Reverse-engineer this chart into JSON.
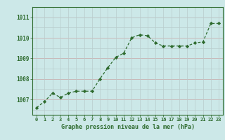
{
  "x": [
    0,
    1,
    2,
    3,
    4,
    5,
    6,
    7,
    8,
    9,
    10,
    11,
    12,
    13,
    14,
    15,
    16,
    17,
    18,
    19,
    20,
    21,
    22,
    23
  ],
  "y": [
    1006.6,
    1006.9,
    1007.3,
    1007.1,
    1007.3,
    1007.4,
    1007.4,
    1007.4,
    1008.0,
    1008.55,
    1009.05,
    1009.25,
    1010.0,
    1010.15,
    1010.1,
    1009.75,
    1009.6,
    1009.6,
    1009.6,
    1009.6,
    1009.75,
    1009.8,
    1010.7,
    1010.7
  ],
  "line_color": "#2d6a2d",
  "marker_color": "#2d6a2d",
  "bg_color": "#cce8e8",
  "grid_major_color": "#c8b8b8",
  "grid_minor_color": "#b8cccc",
  "xlabel": "Graphe pression niveau de la mer (hPa)",
  "xlabel_color": "#2d6a2d",
  "ylabel_ticks": [
    1007,
    1008,
    1009,
    1010,
    1011
  ],
  "ylim": [
    1006.25,
    1011.5
  ],
  "xlim": [
    -0.5,
    23.5
  ],
  "tick_color": "#2d6a2d",
  "border_color": "#2d6a2d"
}
